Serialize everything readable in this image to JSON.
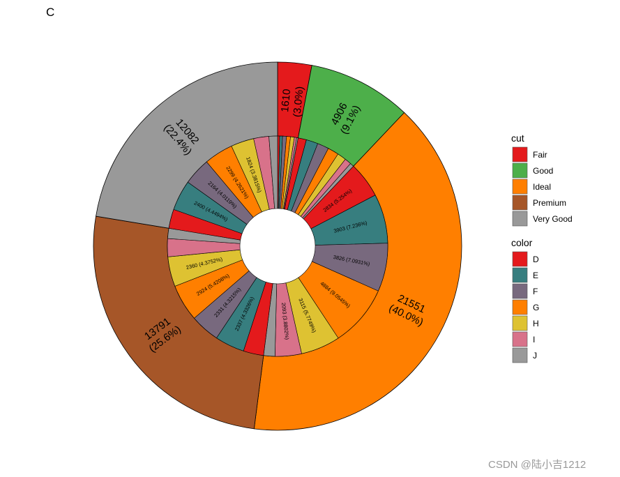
{
  "panel_tag": "C",
  "watermark": "CSDN @陆小吉1212",
  "chart_data": {
    "type": "pie",
    "subtype": "nested-donut",
    "outer_ring": {
      "legend_title": "cut",
      "slices": [
        {
          "category": "Fair",
          "value": 1610,
          "pct_label": "(3.0%)",
          "color": "#E41A1C"
        },
        {
          "category": "Good",
          "value": 4906,
          "pct_label": "(9.1%)",
          "color": "#4DAF4A"
        },
        {
          "category": "Ideal",
          "value": 21551,
          "pct_label": "(40.0%)",
          "color": "#FF7F00"
        },
        {
          "category": "Premium",
          "value": 13791,
          "pct_label": "(25.6%)",
          "color": "#A65628"
        },
        {
          "category": "Very Good",
          "value": 12082,
          "pct_label": "(22.4%)",
          "color": "#999999"
        }
      ]
    },
    "inner_ring": {
      "legend_title": "color",
      "color_map": {
        "D": "#E41A1C",
        "E": "#377E7F",
        "F": "#78697E",
        "G": "#FF7F00",
        "H": "#DEC232",
        "I": "#D8728A",
        "J": "#999999"
      },
      "groups": [
        {
          "cut": "Fair",
          "slices": [
            {
              "color": "D",
              "value": 163
            },
            {
              "color": "E",
              "value": 224
            },
            {
              "color": "F",
              "value": 312
            },
            {
              "color": "G",
              "value": 314
            },
            {
              "color": "H",
              "value": 303
            },
            {
              "color": "I",
              "value": 175
            },
            {
              "color": "J",
              "value": 119
            }
          ]
        },
        {
          "cut": "Good",
          "slices": [
            {
              "color": "D",
              "value": 662
            },
            {
              "color": "E",
              "value": 933
            },
            {
              "color": "F",
              "value": 909
            },
            {
              "color": "G",
              "value": 871
            },
            {
              "color": "H",
              "value": 702
            },
            {
              "color": "I",
              "value": 522
            },
            {
              "color": "J",
              "value": 307
            }
          ]
        },
        {
          "cut": "Ideal",
          "slices": [
            {
              "color": "D",
              "value": 2834,
              "label": "2834 (5.254%)"
            },
            {
              "color": "E",
              "value": 3903,
              "label": "3903 (7.236%)"
            },
            {
              "color": "F",
              "value": 3826,
              "label": "3826 (7.0931%)"
            },
            {
              "color": "G",
              "value": 4884,
              "label": "4884 (9.0545%)"
            },
            {
              "color": "H",
              "value": 3115,
              "label": "3115 (5.7749%)"
            },
            {
              "color": "I",
              "value": 2093,
              "label": "2093 (3.8802%)"
            },
            {
              "color": "J",
              "value": 896
            }
          ]
        },
        {
          "cut": "Premium",
          "slices": [
            {
              "color": "D",
              "value": 1603
            },
            {
              "color": "E",
              "value": 2337,
              "label": "2337 (4.3326%)"
            },
            {
              "color": "F",
              "value": 2331,
              "label": "2331 (4.3215%)"
            },
            {
              "color": "G",
              "value": 2924,
              "label": "2924 (5.4208%)"
            },
            {
              "color": "H",
              "value": 2360,
              "label": "2360 (4.3752%)"
            },
            {
              "color": "I",
              "value": 1428
            },
            {
              "color": "J",
              "value": 808
            }
          ]
        },
        {
          "cut": "Very Good",
          "slices": [
            {
              "color": "D",
              "value": 1513
            },
            {
              "color": "E",
              "value": 2400,
              "label": "2400 (4.4494%)"
            },
            {
              "color": "F",
              "value": 2164,
              "label": "2164 (4.0119%)"
            },
            {
              "color": "G",
              "value": 2299,
              "label": "2299 (4.2621%)"
            },
            {
              "color": "H",
              "value": 1824,
              "label": "1824 (3.3815%)"
            },
            {
              "color": "I",
              "value": 1204
            },
            {
              "color": "J",
              "value": 678
            }
          ]
        }
      ]
    },
    "legend": [
      {
        "title": "cut",
        "items": [
          {
            "label": "Fair",
            "color": "#E41A1C"
          },
          {
            "label": "Good",
            "color": "#4DAF4A"
          },
          {
            "label": "Ideal",
            "color": "#FF7F00"
          },
          {
            "label": "Premium",
            "color": "#A65628"
          },
          {
            "label": "Very Good",
            "color": "#999999"
          }
        ]
      },
      {
        "title": "color",
        "items": [
          {
            "label": "D",
            "color": "#E41A1C"
          },
          {
            "label": "E",
            "color": "#377E7F"
          },
          {
            "label": "F",
            "color": "#78697E"
          },
          {
            "label": "G",
            "color": "#FF7F00"
          },
          {
            "label": "H",
            "color": "#DEC232"
          },
          {
            "label": "I",
            "color": "#D8728A"
          },
          {
            "label": "J",
            "color": "#999999"
          }
        ]
      }
    ],
    "legend_position": "right"
  }
}
